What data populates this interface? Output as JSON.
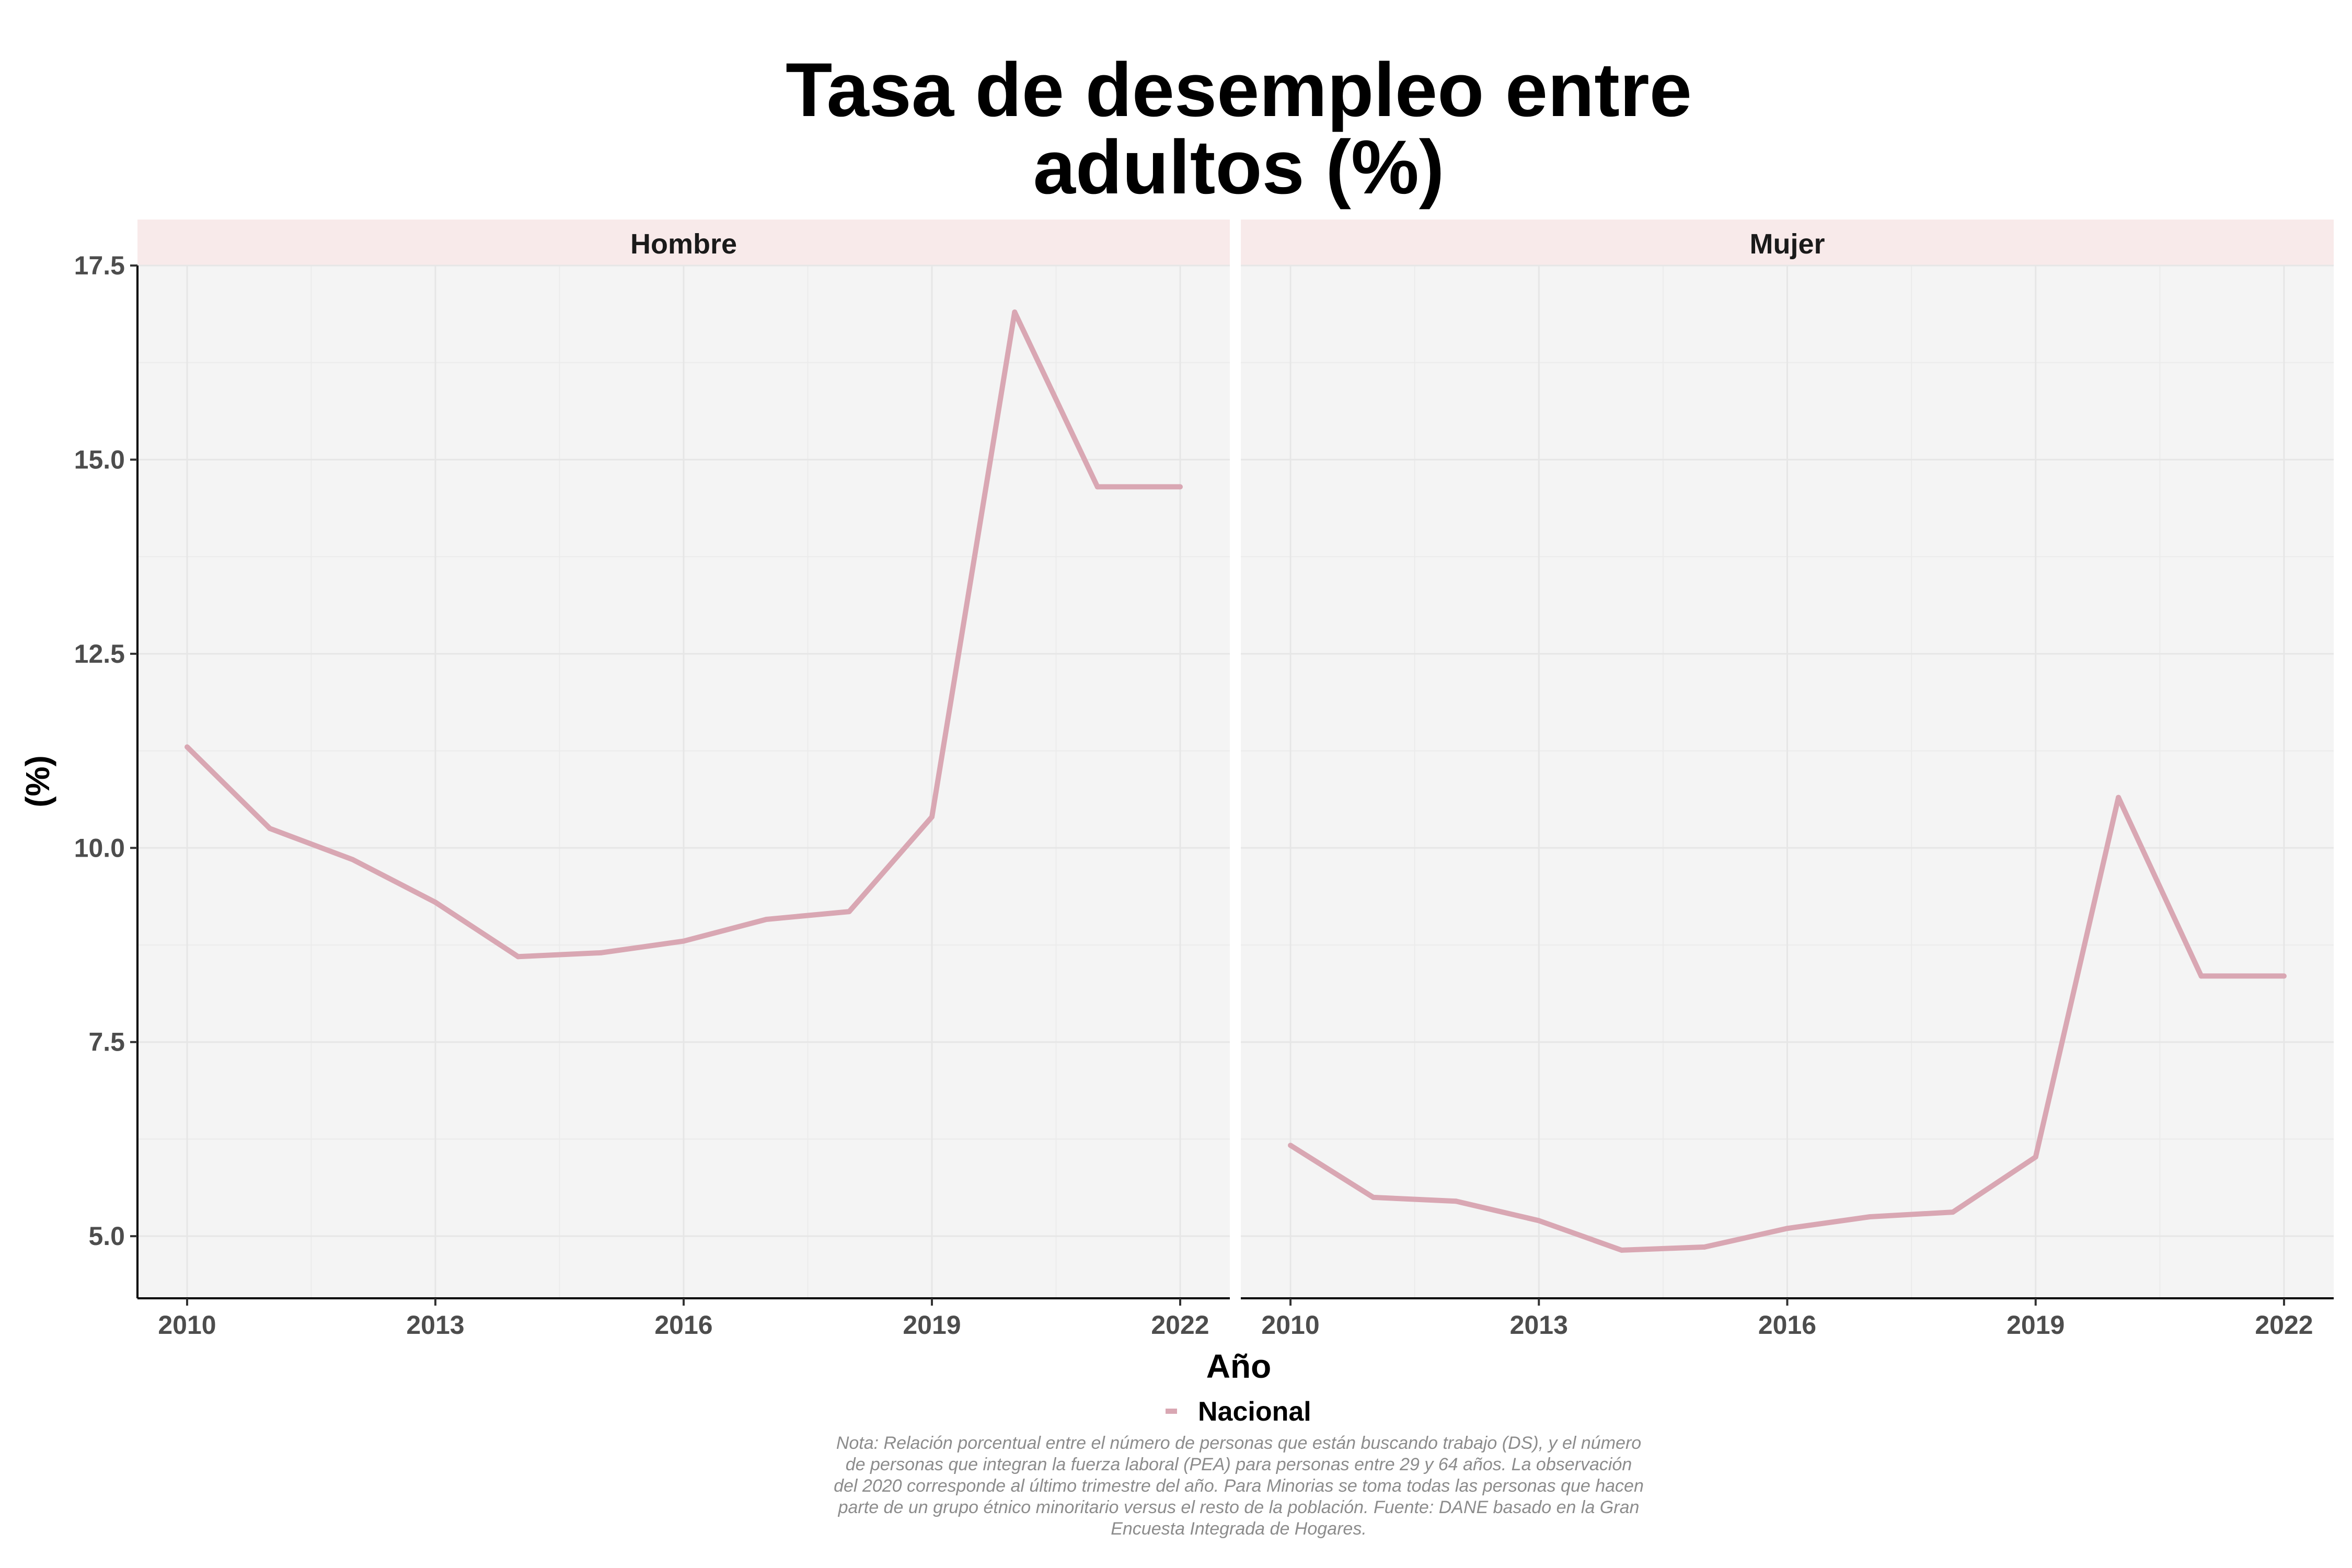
{
  "chart_data": {
    "type": "line",
    "title_lines": [
      "Tasa de desempleo entre",
      "adultos (%)"
    ],
    "xlabel": "Año",
    "ylabel": "(%)",
    "x_ticks": [
      2010,
      2013,
      2016,
      2019,
      2022
    ],
    "y_ticks": [
      "5.0",
      "7.5",
      "10.0",
      "12.5",
      "15.0",
      "17.5"
    ],
    "xlim": [
      2009.4,
      2022.6
    ],
    "ylim": [
      4.2,
      17.5
    ],
    "grid": true,
    "legend_position": "bottom",
    "series_color": "#d9a7b3",
    "strip_color": "#f8eaea",
    "panel_color": "#f4f4f4",
    "panels": [
      {
        "label": "Hombre",
        "series": [
          {
            "name": "Nacional",
            "x": [
              2010,
              2011,
              2012,
              2013,
              2014,
              2015,
              2016,
              2017,
              2018,
              2019,
              2020,
              2021,
              2022
            ],
            "values": [
              11.3,
              10.25,
              9.85,
              9.3,
              8.6,
              8.65,
              8.8,
              9.08,
              9.18,
              10.4,
              16.9,
              14.65,
              14.65
            ]
          }
        ]
      },
      {
        "label": "Mujer",
        "series": [
          {
            "name": "Nacional",
            "x": [
              2010,
              2011,
              2012,
              2013,
              2014,
              2015,
              2016,
              2017,
              2018,
              2019,
              2020,
              2021,
              2022
            ],
            "values": [
              6.17,
              5.5,
              5.45,
              5.2,
              4.82,
              4.86,
              5.1,
              5.25,
              5.31,
              6.02,
              10.65,
              8.35,
              8.35
            ]
          }
        ]
      }
    ],
    "legend": [
      "Nacional"
    ]
  },
  "note_lines": [
    "Nota: Relación porcentual entre el número de personas que están buscando trabajo (DS), y el número",
    "de personas que integran la fuerza laboral (PEA) para personas entre 29 y 64 años. La observación",
    "del 2020 corresponde al último trimestre del año. Para Minorias se toma todas las personas que hacen",
    "parte de un grupo étnico minoritario versus el resto de la población. Fuente: DANE basado en la Gran",
    "Encuesta Integrada de Hogares."
  ]
}
